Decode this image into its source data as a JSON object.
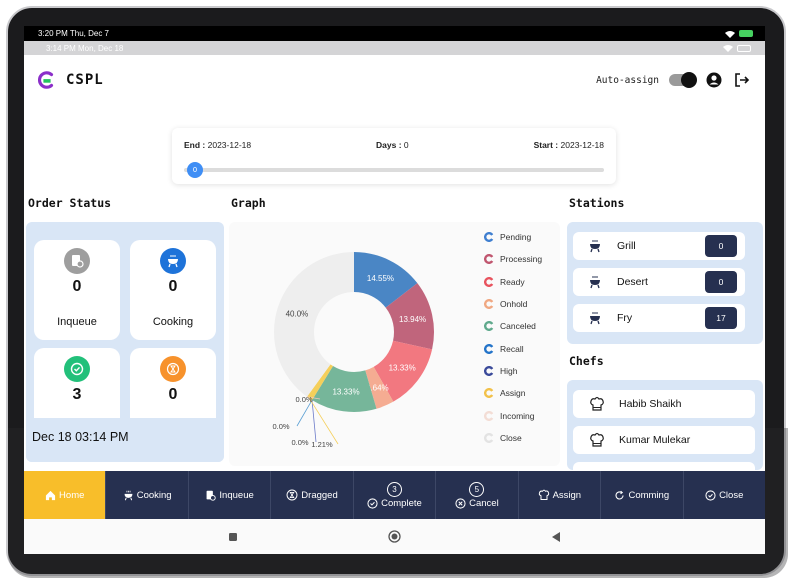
{
  "status_bar": {
    "time": "3:20 PM Thu, Dec 7"
  },
  "status_bar_app": {
    "time": "3:14 PM Mon, Dec 18"
  },
  "app": {
    "brand": "CSPL",
    "auto_assign_label": "Auto-assign",
    "auto_assign_on": true
  },
  "date_filter": {
    "end_label": "End :",
    "end_value": "2023-12-18",
    "days_label": "Days :",
    "days_value": "0",
    "start_label": "Start :",
    "start_value": "2023-12-18",
    "slider_value": "0"
  },
  "sections": {
    "order_status": "Order Status",
    "graph": "Graph",
    "stations": "Stations",
    "chefs": "Chefs"
  },
  "order_status": {
    "cards": [
      {
        "label": "Inqueue",
        "value": "0",
        "icon": "document-clock-icon",
        "color": "#9e9e9e"
      },
      {
        "label": "Cooking",
        "value": "0",
        "icon": "grill-icon",
        "color": "#1e73d9"
      },
      {
        "label": "",
        "value": "3",
        "icon": "check-circle-icon",
        "color": "#22c07a"
      },
      {
        "label": "",
        "value": "0",
        "icon": "hourglass-icon",
        "color": "#f7922c"
      }
    ],
    "timestamp": "Dec 18 03:14 PM"
  },
  "chart_data": {
    "type": "pie",
    "slices": [
      {
        "value": 14.55,
        "label": "14.55%",
        "color": "#4a86c5"
      },
      {
        "value": 13.94,
        "label": "13.94%",
        "color": "#c0657c"
      },
      {
        "value": 13.33,
        "label": "13.33%",
        "color": "#f27880"
      },
      {
        "value": 3.64,
        "label": "3.64%",
        "color": "#f5ac92"
      },
      {
        "value": 13.33,
        "label": "13.33%",
        "color": "#76b69a"
      },
      {
        "value": 0.0,
        "label": "0.0%",
        "color": "#5a9fd4"
      },
      {
        "value": 0.0,
        "label": "0.0%",
        "color": "#6b7ac9"
      },
      {
        "value": 1.21,
        "label": "1.21%",
        "color": "#f5cf5a"
      },
      {
        "value": 0.0,
        "label": "0.0%",
        "color": "#f0c9bb"
      },
      {
        "value": 40.0,
        "label": "40.0%",
        "color": "#eeeeee"
      }
    ],
    "legend": [
      {
        "name": "Pending",
        "color": "#3f7fd0"
      },
      {
        "name": "Processing",
        "color": "#c0566f"
      },
      {
        "name": "Ready",
        "color": "#e8535e"
      },
      {
        "name": "Onhold",
        "color": "#f0a882"
      },
      {
        "name": "Canceled",
        "color": "#5fa98c"
      },
      {
        "name": "Recall",
        "color": "#2474c9"
      },
      {
        "name": "High",
        "color": "#3a4a9a"
      },
      {
        "name": "Assign",
        "color": "#f2c14a"
      },
      {
        "name": "Incoming",
        "color": "#f3ddd5"
      },
      {
        "name": "Close",
        "color": "#e3e3e3"
      }
    ]
  },
  "stations": [
    {
      "name": "Grill",
      "count": "0"
    },
    {
      "name": "Desert",
      "count": "0"
    },
    {
      "name": "Fry",
      "count": "17"
    }
  ],
  "chefs": [
    {
      "name": "Habib Shaikh"
    },
    {
      "name": "Kumar Mulekar"
    }
  ],
  "bottom_nav": [
    {
      "label": "Home",
      "icon": "home-icon",
      "active": true
    },
    {
      "label": "Cooking",
      "icon": "grill-icon"
    },
    {
      "label": "Inqueue",
      "icon": "document-clock-icon"
    },
    {
      "label": "Dragged",
      "icon": "hourglass-icon"
    },
    {
      "label": "Complete",
      "icon": "check-circle-icon",
      "badge": "3"
    },
    {
      "label": "Cancel",
      "icon": "cancel-circle-icon",
      "badge": "5"
    },
    {
      "label": "Assign",
      "icon": "chef-hat-icon"
    },
    {
      "label": "Comming",
      "icon": "refresh-icon"
    },
    {
      "label": "Close",
      "icon": "check-circle-icon"
    }
  ]
}
